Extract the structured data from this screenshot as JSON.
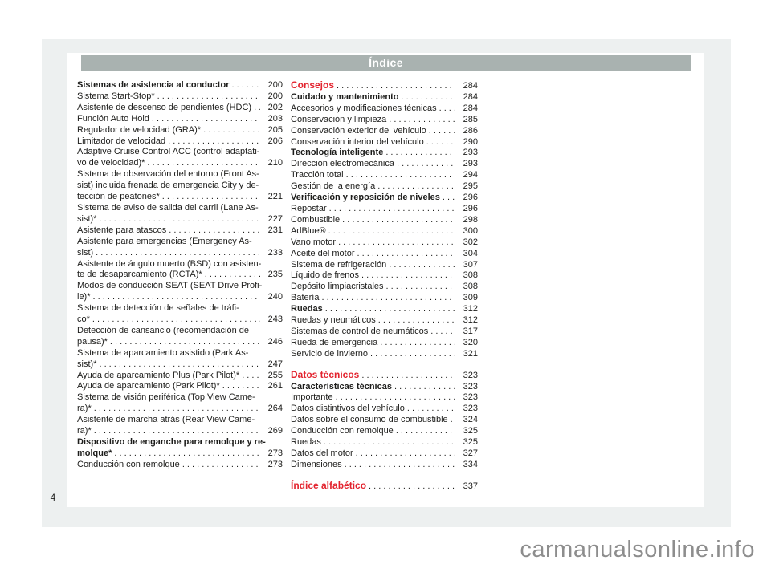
{
  "page": {
    "title": "Índice",
    "folio": "4"
  },
  "watermark": {
    "text": "carmanualsonline.info"
  },
  "colors": {
    "accent_red": "#e3232e",
    "titlebar_bg": "#a9b2b0",
    "viewer_bg": "#edf0f0",
    "text": "#1d1d1b",
    "watermark": "#8d8d8d"
  },
  "toc": {
    "left_column": [
      {
        "text": "Sistemas de asistencia al conductor",
        "page": "200",
        "bold": true
      },
      {
        "text": "Sistema Start-Stop*",
        "page": "200"
      },
      {
        "text": "Asistente de descenso de pendientes (HDC)",
        "page": "202"
      },
      {
        "text": "Función Auto Hold",
        "page": "203"
      },
      {
        "text": "Regulador de velocidad (GRA)*",
        "page": "205"
      },
      {
        "text": "Limitador de velocidad",
        "page": "206"
      },
      {
        "text": "Adaptive Cruise Control ACC (control adaptati-"
      },
      {
        "text": "vo de velocidad)*",
        "page": "210"
      },
      {
        "text": "Sistema de observación del entorno (Front As-"
      },
      {
        "text": "sist) incluida frenada de emergencia City y de-"
      },
      {
        "text": "tección de peatones*",
        "page": "221"
      },
      {
        "text": "Sistema de aviso de salida del carril (Lane As-"
      },
      {
        "text": "sist)*",
        "page": "227"
      },
      {
        "text": "Asistente para atascos",
        "page": "231"
      },
      {
        "text": "Asistente para emergencias (Emergency As-"
      },
      {
        "text": "sist)",
        "page": "233"
      },
      {
        "text": "Asistente de ángulo muerto (BSD) con asisten-"
      },
      {
        "text": "te de desaparcamiento (RCTA)*",
        "page": "235"
      },
      {
        "text": "Modos de conducción SEAT (SEAT Drive Profi-"
      },
      {
        "text": "le)*",
        "page": "240"
      },
      {
        "text": "Sistema de detección de señales de tráfi-"
      },
      {
        "text": "co*",
        "page": "243"
      },
      {
        "text": "Detección de cansancio (recomendación de"
      },
      {
        "text": "pausa)*",
        "page": "246"
      },
      {
        "text": "Sistema de aparcamiento asistido (Park As-"
      },
      {
        "text": "sist)*",
        "page": "247"
      },
      {
        "text": "Ayuda de aparcamiento Plus (Park Pilot)*",
        "page": "255"
      },
      {
        "text": "Ayuda de aparcamiento (Park Pilot)*",
        "page": "261"
      },
      {
        "text": "Sistema de visión periférica (Top View Came-"
      },
      {
        "text": "ra)*",
        "page": "264"
      },
      {
        "text": "Asistente de marcha atrás (Rear View Came-"
      },
      {
        "text": "ra)*",
        "page": "269"
      },
      {
        "text": "Dispositivo de enganche para remolque y re-",
        "bold": true
      },
      {
        "text": "molque*",
        "page": "273",
        "bold": true
      },
      {
        "text": "Conducción con remolque",
        "page": "273"
      }
    ],
    "right_column": [
      {
        "text": "Consejos",
        "page": "284",
        "red": true
      },
      {
        "text": "Cuidado y mantenimiento",
        "page": "284",
        "bold": true
      },
      {
        "text": "Accesorios y modificaciones técnicas",
        "page": "284"
      },
      {
        "text": "Conservación y limpieza",
        "page": "285"
      },
      {
        "text": "Conservación exterior del vehículo",
        "page": "286"
      },
      {
        "text": "Conservación interior del vehículo",
        "page": "290"
      },
      {
        "text": "Tecnología inteligente",
        "page": "293",
        "bold": true
      },
      {
        "text": "Dirección electromecánica",
        "page": "293"
      },
      {
        "text": "Tracción total",
        "page": "294"
      },
      {
        "text": "Gestión de la energía",
        "page": "295"
      },
      {
        "text": "Verificación y reposición de niveles",
        "page": "296",
        "bold": true
      },
      {
        "text": "Repostar",
        "page": "296"
      },
      {
        "text": "Combustible",
        "page": "298"
      },
      {
        "text": "AdBlue®",
        "page": "300"
      },
      {
        "text": "Vano motor",
        "page": "302"
      },
      {
        "text": "Aceite del motor",
        "page": "304"
      },
      {
        "text": "Sistema de refrigeración",
        "page": "307"
      },
      {
        "text": "Líquido de frenos",
        "page": "308"
      },
      {
        "text": "Depósito limpiacristales",
        "page": "308"
      },
      {
        "text": "Batería",
        "page": "309"
      },
      {
        "text": "Ruedas",
        "page": "312",
        "bold": true
      },
      {
        "text": "Ruedas y neumáticos",
        "page": "312"
      },
      {
        "text": "Sistemas de control de neumáticos",
        "page": "317"
      },
      {
        "text": "Rueda de emergencia",
        "page": "320"
      },
      {
        "text": "Servicio de invierno",
        "page": "321"
      },
      {
        "text": "Datos técnicos",
        "page": "323",
        "red": true,
        "gap": true
      },
      {
        "text": "Características técnicas",
        "page": "323",
        "bold": true
      },
      {
        "text": "Importante",
        "page": "323"
      },
      {
        "text": "Datos distintivos del vehículo",
        "page": "323"
      },
      {
        "text": "Datos sobre el consumo de combustible",
        "page": "324"
      },
      {
        "text": "Conducción con remolque",
        "page": "325"
      },
      {
        "text": "Ruedas",
        "page": "325"
      },
      {
        "text": "Datos del motor",
        "page": "327"
      },
      {
        "text": "Dimensiones",
        "page": "334"
      },
      {
        "text": "Índice alfabético",
        "page": "337",
        "red": true,
        "gap": true
      }
    ]
  }
}
